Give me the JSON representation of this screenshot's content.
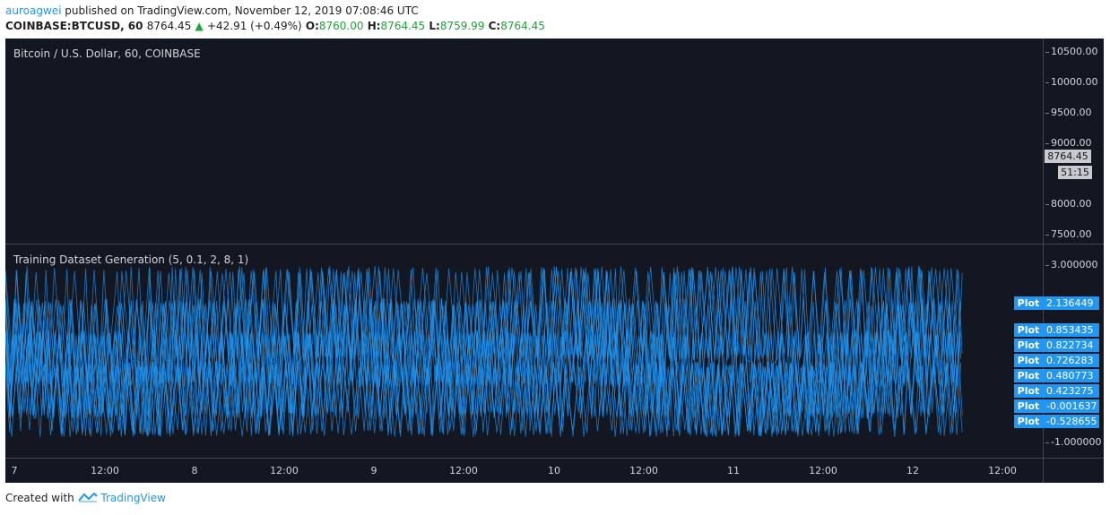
{
  "header": {
    "user": "auroagwei",
    "published_text": " published on TradingView.com, November 12, 2019 07:08:46 UTC"
  },
  "symbol_bar": {
    "symbol": "COINBASE:BTCUSD, 60",
    "price": "8764.45",
    "arrow": "▲",
    "change": "+42.91 (+0.49%)",
    "open_label": "O:",
    "open": "8760.00",
    "high_label": "H:",
    "high": "8764.45",
    "low_label": "L:",
    "low": "8759.99",
    "close_label": "C:",
    "close": "8764.45"
  },
  "main_pane": {
    "title": "Bitcoin / U.S. Dollar, 60, COINBASE",
    "y_ticks": [
      "10500.00",
      "10000.00",
      "9500.00",
      "9000.00",
      "8000.00",
      "7500.00"
    ],
    "price_badge": "8764.45",
    "time_badge": "51:15"
  },
  "indicator_pane": {
    "title": "Training Dataset Generation (5, 0.1, 2, 8, 1)",
    "y_ticks": [
      "3.000000",
      "-1.000000"
    ],
    "plot_labels": [
      {
        "name": "Plot",
        "value": "2.136449"
      },
      {
        "name": "Plot",
        "value": "0.853435"
      },
      {
        "name": "Plot",
        "value": "0.822734"
      },
      {
        "name": "Plot",
        "value": "0.726283"
      },
      {
        "name": "Plot",
        "value": "0.480773"
      },
      {
        "name": "Plot",
        "value": "0.423275"
      },
      {
        "name": "Plot",
        "value": "-0.001637"
      },
      {
        "name": "Plot",
        "value": "-0.528655"
      }
    ],
    "series_color": "#2196f3"
  },
  "x_axis": {
    "ticks": [
      "7",
      "12:00",
      "8",
      "12:00",
      "9",
      "12:00",
      "10",
      "12:00",
      "11",
      "12:00",
      "12",
      "12:00"
    ]
  },
  "footer": {
    "created_with": "Created with ",
    "brand": "TradingView"
  },
  "colors": {
    "background": "#131722",
    "accent": "#2196f3",
    "up": "#21a33a"
  }
}
